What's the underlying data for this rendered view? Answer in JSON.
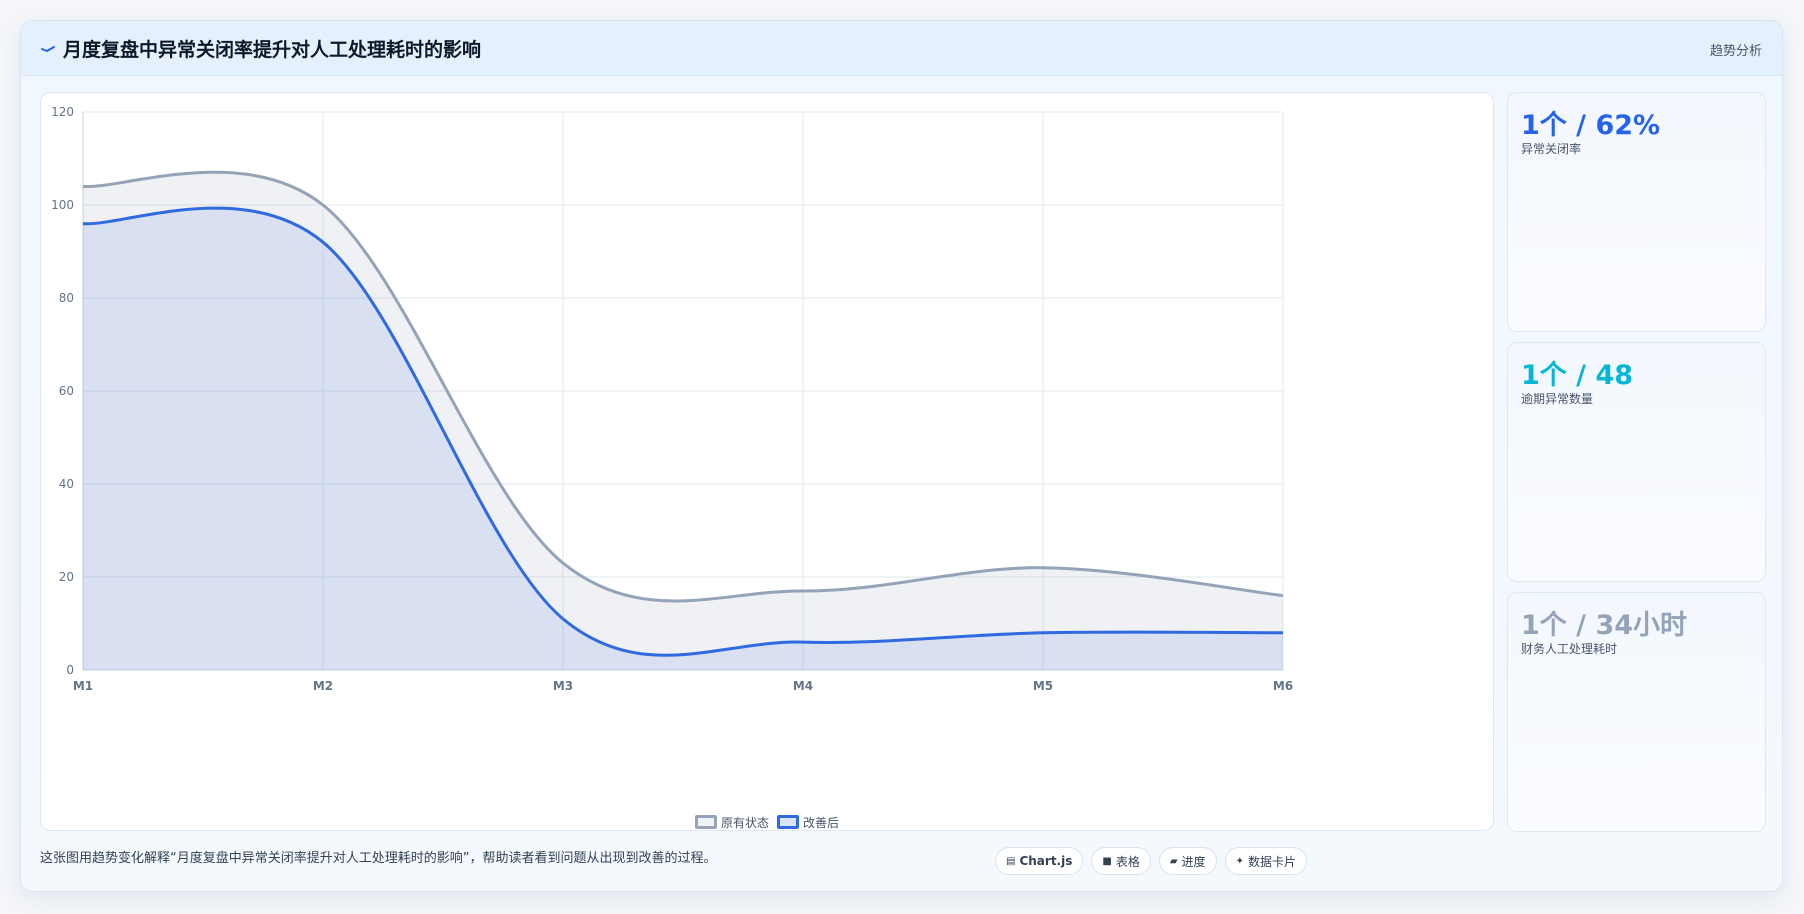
{
  "header": {
    "title": "月度复盘中异常关闭率提升对人工处理耗时的影响",
    "tag": "趋势分析"
  },
  "chart_data": {
    "type": "area",
    "categories": [
      "M1",
      "M2",
      "M3",
      "M4",
      "M5",
      "M6"
    ],
    "series": [
      {
        "name": "原有状态",
        "values": [
          104,
          100,
          23,
          17,
          22,
          16
        ],
        "color": "#94a3b8"
      },
      {
        "name": "改善后",
        "values": [
          96,
          92,
          11,
          6,
          8,
          8
        ],
        "color": "#2f6ae0"
      }
    ],
    "ylim": [
      0,
      120
    ],
    "yticks": [
      0,
      20,
      40,
      60,
      80,
      100,
      120
    ],
    "grid": true,
    "legend": "bottom"
  },
  "kpis": [
    {
      "value": "1个 / 62%",
      "label": "异常关闭率",
      "color": "#2563eb"
    },
    {
      "value": "1个 / 48",
      "label": "逾期异常数量",
      "color": "#06b6d4"
    },
    {
      "value": "1个 / 34小时",
      "label": "财务人工处理耗时",
      "color": "#94a3b8"
    }
  ],
  "caption": "这张图用趋势变化解释“月度复盘中异常关闭率提升对人工处理耗时的影响”，帮助读者看到问题从出现到改善的过程。",
  "chips": [
    {
      "icon": "▤",
      "label": "Chart.js"
    },
    {
      "icon": "■",
      "label": "表格"
    },
    {
      "icon": "▰",
      "label": "进度"
    },
    {
      "icon": "✦",
      "label": "数据卡片"
    }
  ]
}
